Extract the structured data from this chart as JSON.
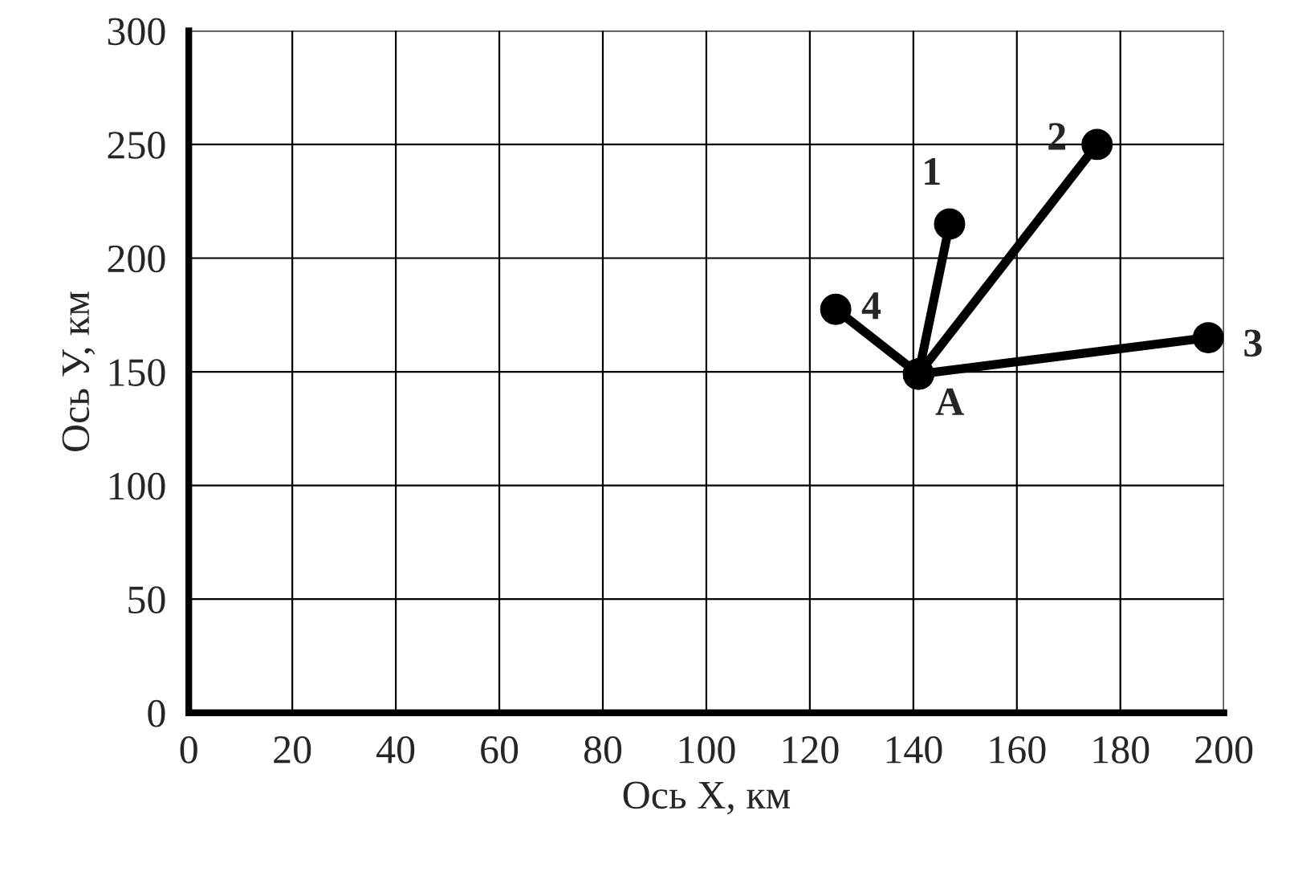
{
  "chart_data": {
    "type": "line",
    "xlabel": "Ось X, км",
    "ylabel": "Ось У, км",
    "series": [
      {
        "color": "#000000",
        "x": [
          141,
          147
        ],
        "values": [
          149,
          215
        ]
      },
      {
        "color": "#000000",
        "x": [
          141,
          175.5
        ],
        "values": [
          149,
          250
        ]
      },
      {
        "color": "#000000",
        "x": [
          141,
          197
        ],
        "values": [
          149,
          165
        ]
      },
      {
        "color": "#000000",
        "x": [
          141,
          125
        ],
        "values": [
          149,
          177.5
        ]
      }
    ],
    "annotations": [
      {
        "text": "1",
        "x": 147,
        "y": 215
      },
      {
        "text": "2",
        "x": 175.5,
        "y": 250
      },
      {
        "text": "3",
        "x": 197,
        "y": 165
      },
      {
        "text": "4",
        "x": 125,
        "y": 177.5
      },
      {
        "text": "A",
        "x": 141,
        "y": 149
      }
    ],
    "xlim": [
      0,
      200
    ],
    "xticks": [
      0,
      20,
      40,
      60,
      80,
      100,
      120,
      140,
      160,
      180,
      200
    ],
    "ylim": [
      0,
      300
    ],
    "yticks": [
      0,
      50,
      100,
      150,
      200,
      250,
      300
    ],
    "grid": true,
    "marker": "circle",
    "line_style": "solid"
  }
}
